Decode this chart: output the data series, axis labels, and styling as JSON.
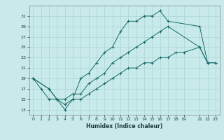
{
  "xlabel": "Humidex (Indice chaleur)",
  "bg_color": "#c8eaea",
  "grid_color": "#b0d8d8",
  "line_color": "#1a6b6b",
  "xlim": [
    -0.5,
    23.5
  ],
  "ylim": [
    12,
    33
  ],
  "xticks": [
    0,
    1,
    2,
    3,
    4,
    5,
    6,
    7,
    8,
    9,
    10,
    11,
    12,
    13,
    14,
    15,
    16,
    17,
    18,
    19,
    21,
    22,
    23
  ],
  "yticks": [
    13,
    15,
    17,
    19,
    21,
    23,
    25,
    27,
    29,
    31
  ],
  "line1_x": [
    0,
    1,
    2,
    3,
    4,
    5,
    6,
    7,
    8,
    9,
    10,
    11,
    12,
    13,
    14,
    15,
    16,
    17,
    21,
    22
  ],
  "line1_y": [
    19,
    17,
    15,
    15,
    13,
    15,
    19,
    20,
    22,
    24,
    25,
    28,
    30,
    30,
    31,
    31,
    32,
    30,
    29,
    22
  ],
  "line2_x": [
    0,
    2,
    3,
    4,
    5,
    6,
    7,
    8,
    9,
    10,
    11,
    12,
    13,
    14,
    15,
    16,
    17,
    21,
    22,
    23
  ],
  "line2_y": [
    19,
    17,
    15,
    15,
    16,
    16,
    18,
    19,
    20,
    22,
    23,
    24,
    25,
    26,
    27,
    28,
    29,
    25,
    22,
    22
  ],
  "line3_x": [
    0,
    2,
    3,
    4,
    5,
    6,
    7,
    8,
    9,
    10,
    11,
    12,
    13,
    14,
    15,
    16,
    17,
    18,
    19,
    21,
    22,
    23
  ],
  "line3_y": [
    19,
    17,
    15,
    14,
    15,
    15,
    16,
    17,
    18,
    19,
    20,
    21,
    21,
    22,
    22,
    23,
    23,
    24,
    24,
    25,
    22,
    22
  ]
}
